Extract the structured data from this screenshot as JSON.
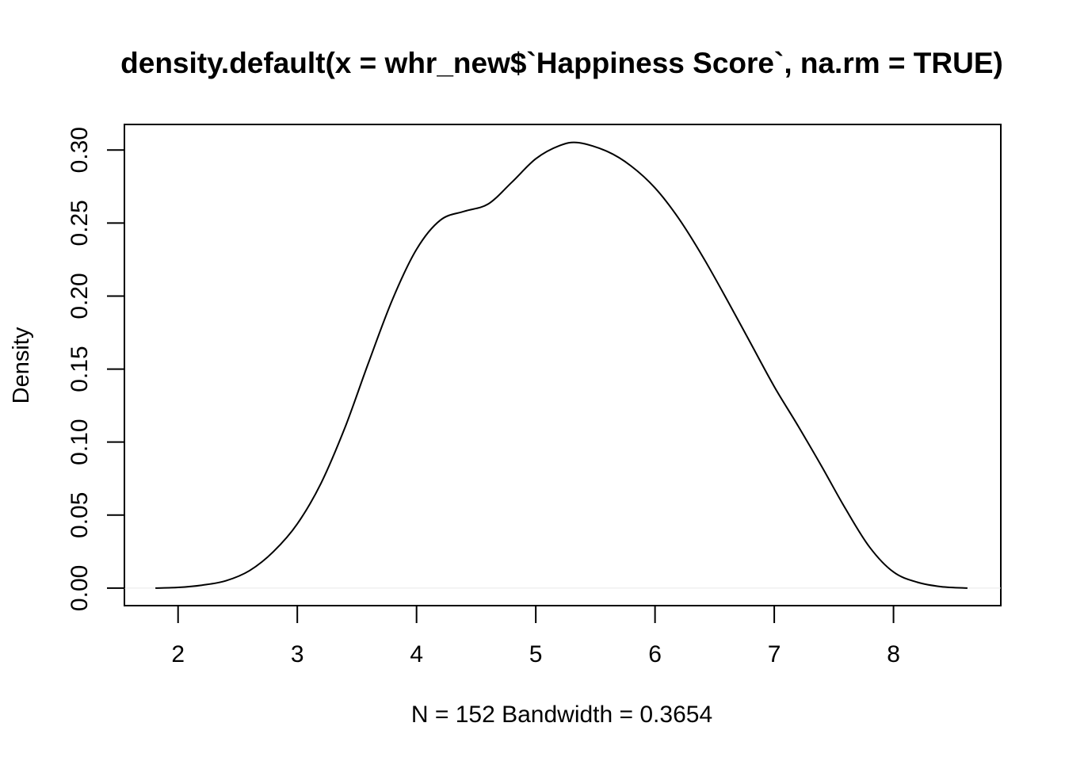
{
  "chart_data": {
    "type": "line",
    "title": "density.default(x = whr_new$`Happiness Score`, na.rm = TRUE)",
    "xlabel": "N = 152   Bandwidth = 0.3654",
    "ylabel": "Density",
    "xlim": [
      1.55,
      8.9
    ],
    "ylim": [
      -0.012,
      0.3175
    ],
    "x_ticks": [
      2,
      3,
      4,
      5,
      6,
      7,
      8
    ],
    "x_tick_labels": [
      "2",
      "3",
      "4",
      "5",
      "6",
      "7",
      "8"
    ],
    "y_ticks": [
      0.0,
      0.05,
      0.1,
      0.15,
      0.2,
      0.25,
      0.3
    ],
    "y_tick_labels": [
      "0.00",
      "0.05",
      "0.10",
      "0.15",
      "0.20",
      "0.25",
      "0.30"
    ],
    "grid": false,
    "zero_line": true,
    "zero_line_color": "#e8e8e8",
    "line_color": "#000000",
    "series": [
      {
        "x": [
          1.81,
          2.0,
          2.2,
          2.4,
          2.6,
          2.8,
          3.0,
          3.2,
          3.4,
          3.6,
          3.8,
          4.0,
          4.2,
          4.4,
          4.6,
          4.8,
          5.0,
          5.2,
          5.36,
          5.6,
          5.8,
          6.0,
          6.2,
          6.4,
          6.6,
          6.8,
          7.0,
          7.2,
          7.4,
          7.6,
          7.8,
          8.0,
          8.2,
          8.4,
          8.62
        ],
        "y": [
          0.0,
          0.0005,
          0.002,
          0.005,
          0.012,
          0.025,
          0.044,
          0.072,
          0.11,
          0.155,
          0.198,
          0.232,
          0.252,
          0.258,
          0.263,
          0.278,
          0.294,
          0.303,
          0.305,
          0.299,
          0.289,
          0.274,
          0.253,
          0.227,
          0.198,
          0.168,
          0.138,
          0.111,
          0.083,
          0.054,
          0.028,
          0.011,
          0.004,
          0.001,
          0.0
        ]
      }
    ]
  }
}
